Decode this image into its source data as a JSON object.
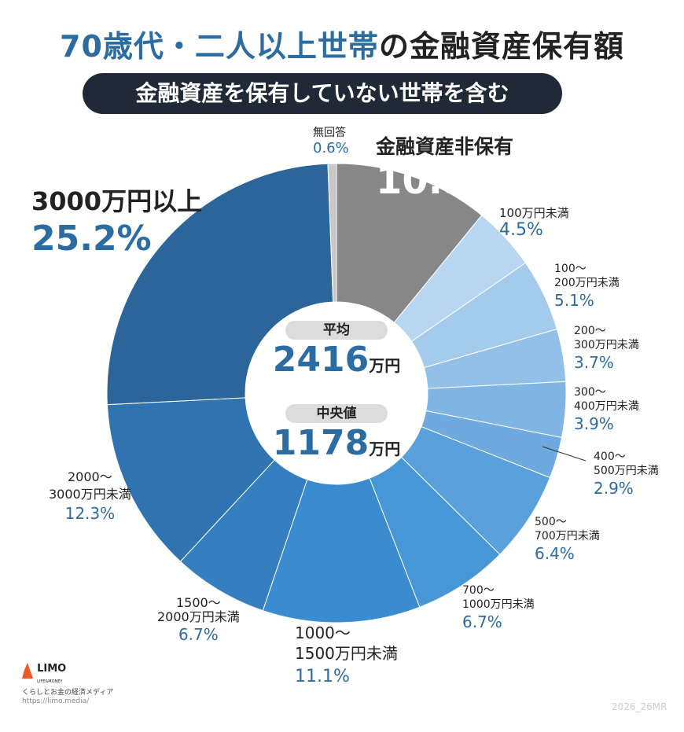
{
  "title": {
    "part1": "70歳代・二人以上世帯",
    "part2": "の金融資産保有額"
  },
  "subtitle": "金融資産を保有していない世帯を含む",
  "center": {
    "mean_label": "平均",
    "mean_value": "2416",
    "mean_unit": "万円",
    "median_label": "中央値",
    "median_value": "1178",
    "median_unit": "万円"
  },
  "chart_data": {
    "type": "pie",
    "title": "70歳代・二人以上世帯の金融資産保有額",
    "subtitle": "金融資産を保有していない世帯を含む",
    "donut": true,
    "slices": [
      {
        "name": "金融資産非保有",
        "name2": "",
        "value": 10.9,
        "label": "10.9%",
        "color": "#878787"
      },
      {
        "name": "100万円未満",
        "name2": "",
        "value": 4.5,
        "label": "4.5%",
        "color": "#b8d6f0"
      },
      {
        "name": "100〜",
        "name2": "200万円未満",
        "value": 5.1,
        "label": "5.1%",
        "color": "#a5cbec"
      },
      {
        "name": "200〜",
        "name2": "300万円未満",
        "value": 3.7,
        "label": "3.7%",
        "color": "#93c0e8"
      },
      {
        "name": "300〜",
        "name2": "400万円未満",
        "value": 3.9,
        "label": "3.9%",
        "color": "#80b5e3"
      },
      {
        "name": "400〜",
        "name2": "500万円未満",
        "value": 2.9,
        "label": "2.9%",
        "color": "#6eaadf"
      },
      {
        "name": "500〜",
        "name2": "700万円未満",
        "value": 6.4,
        "label": "6.4%",
        "color": "#5aa0dc"
      },
      {
        "name": "700〜",
        "name2": "1000万円未満",
        "value": 6.7,
        "label": "6.7%",
        "color": "#4796d6"
      },
      {
        "name": "1000〜",
        "name2": "1500万円未満",
        "value": 11.1,
        "label": "11.1%",
        "color": "#3a8bd0"
      },
      {
        "name": "1500〜",
        "name2": "2000万円未満",
        "value": 6.7,
        "label": "6.7%",
        "color": "#357fc0"
      },
      {
        "name": "2000〜",
        "name2": "3000万円未満",
        "value": 12.3,
        "label": "12.3%",
        "color": "#2f74b1"
      },
      {
        "name": "3000万円以上",
        "name2": "",
        "value": 25.2,
        "label": "25.2%",
        "color": "#2b6599"
      },
      {
        "name": "無回答",
        "name2": "",
        "value": 0.6,
        "label": "0.6%",
        "color": "#c8c8c8"
      }
    ]
  },
  "footer": {
    "logo": "LIMO",
    "logo_sub": "LIFE&MONEY",
    "tagline": "くらしとお金の経済メディア",
    "url": "https://limo.media/",
    "code": "2026_26MR"
  }
}
